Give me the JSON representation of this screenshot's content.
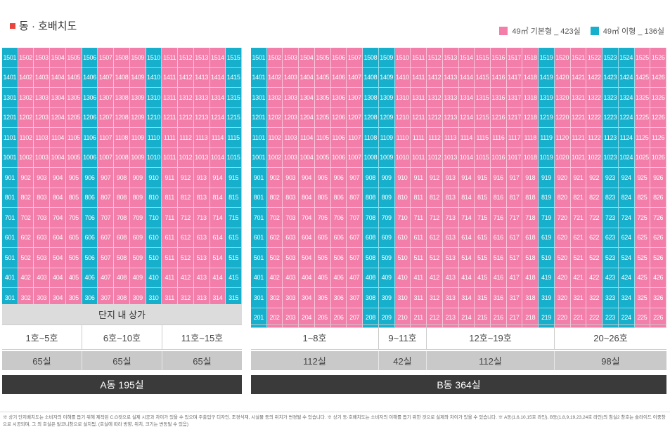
{
  "title": "동 · 호배치도",
  "legend": [
    {
      "label": "49㎡ 기본형 _ 423실",
      "color": "#f27ea9"
    },
    {
      "label": "49㎡ 이형 _ 136실",
      "color": "#16b0cc"
    }
  ],
  "buildingA": {
    "floors": [
      15,
      14,
      13,
      12,
      11,
      10,
      9,
      8,
      7,
      6,
      5,
      4,
      3
    ],
    "lines": 15,
    "cyanLines": [
      1,
      6,
      10,
      15
    ],
    "shops_label": "단지 내 상가",
    "ranges": [
      "1호~5호",
      "6호~10호",
      "11호~15호"
    ],
    "counts": [
      "65실",
      "65실",
      "65실"
    ],
    "total": "A동 195실"
  },
  "buildingB": {
    "floors": [
      15,
      14,
      13,
      12,
      11,
      10,
      9,
      8,
      7,
      6,
      5,
      4,
      3,
      2
    ],
    "lines": 26,
    "cyanLines": [
      1,
      8,
      9,
      19,
      23,
      24
    ],
    "ranges": [
      "1~8호",
      "9~11호",
      "12호~19호",
      "20~26호"
    ],
    "counts": [
      "112실",
      "42실",
      "112실",
      "98실"
    ],
    "total": "B동 364실"
  },
  "note": "※ 상기 단지배치도는 소비자의 이해를 돕기 위해 제작된 C.G컷으로 실제 시공과 차이가 있을 수 있으며 주출입구 디자인, 조경식재, 시설물 등의 위치가 변경될 수 있습니다. ※ 상기 동·호배치도는 소비자의 이해를 돕기 위한 것으로 실제와 차이가 있을 수 있습니다. ※ A동(1,6,10,15호 라인), B동(1,8,9,19,23,24호 라인)의 침실2 창호는 슬라이드 이중창으로 시공되며, 그 외 호실은 발코니창으로 설치됨. (호실에 따라 방향, 위치, 크기는 변동될 수 있음)"
}
